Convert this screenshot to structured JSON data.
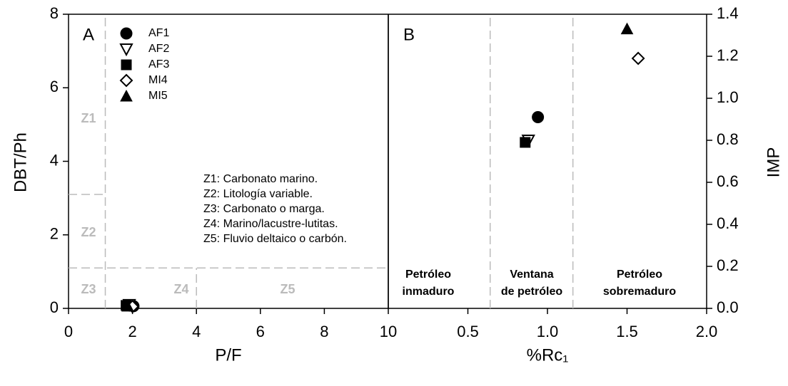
{
  "chart_data": [
    {
      "type": "scatter",
      "panel_label": "A",
      "xlabel": "P/F",
      "ylabel": "DBT/Ph",
      "xlim": [
        0,
        10
      ],
      "xticks": [
        0,
        2,
        4,
        6,
        8,
        10
      ],
      "ylim": [
        0,
        8
      ],
      "yticks": [
        0,
        2,
        4,
        6,
        8
      ],
      "series": [
        {
          "name": "AF1",
          "marker": "circle",
          "color": "#000000",
          "x": [
            2.03
          ],
          "values": [
            0.06
          ]
        },
        {
          "name": "AF2",
          "marker": "triangle-down-open",
          "color": "#000000",
          "x": [
            1.9
          ],
          "values": [
            0.1
          ]
        },
        {
          "name": "AF3",
          "marker": "square",
          "color": "#000000",
          "x": [
            1.8
          ],
          "values": [
            0.08
          ]
        },
        {
          "name": "MI4",
          "marker": "diamond-open",
          "color": "#000000",
          "x": [
            2.0
          ],
          "values": [
            0.05
          ]
        },
        {
          "name": "MI5",
          "marker": "triangle-up",
          "color": "#000000",
          "x": [
            1.85
          ],
          "values": [
            0.06
          ]
        }
      ],
      "zone_lines": [
        {
          "x": [
            1.15,
            1.15
          ],
          "y": [
            0,
            8
          ]
        },
        {
          "x": [
            0,
            10
          ],
          "y": [
            1.1,
            1.1
          ]
        },
        {
          "x": [
            0,
            1.15
          ],
          "y": [
            3.1,
            3.1
          ]
        },
        {
          "x": [
            4,
            4
          ],
          "y": [
            0,
            1.1
          ]
        }
      ],
      "zones": [
        "Z1",
        "Z2",
        "Z3",
        "Z4",
        "Z5"
      ],
      "notes": [
        "Z1: Carbonato marino.",
        "Z2: Litología variable.",
        "Z3: Carbonato o marga.",
        "Z4: Marino/lacustre-lutitas.",
        "Z5: Fluvio deltaico o carbón."
      ]
    },
    {
      "type": "scatter",
      "panel_label": "B",
      "xlabel": "%Rc₁",
      "y2label": "IMP",
      "xlim": [
        0,
        2
      ],
      "xticks": [
        0.5,
        {
          "value": 1,
          "label": "1.0"
        },
        1.5,
        {
          "value": 2,
          "label": "2.0"
        }
      ],
      "y2lim": [
        0,
        1.4
      ],
      "y2ticks": [
        {
          "value": 0,
          "label": "0.0"
        },
        0.2,
        0.4,
        0.6,
        0.8,
        {
          "value": 1,
          "label": "1.0"
        },
        1.2,
        1.4
      ],
      "series": [
        {
          "marker": "circle",
          "color": "#000000",
          "axis": "y2",
          "x": [
            0.94
          ],
          "values": [
            0.91
          ]
        },
        {
          "marker": "triangle-down-open",
          "color": "#000000",
          "axis": "y2",
          "x": [
            0.88
          ],
          "values": [
            0.8
          ]
        },
        {
          "marker": "square",
          "color": "#000000",
          "axis": "y2",
          "x": [
            0.86
          ],
          "values": [
            0.79
          ]
        },
        {
          "marker": "diamond-open",
          "color": "#000000",
          "axis": "y2",
          "x": [
            1.57
          ],
          "values": [
            1.19
          ]
        },
        {
          "marker": "triangle-up",
          "color": "#000000",
          "axis": "y2",
          "x": [
            1.5
          ],
          "values": [
            1.33
          ]
        }
      ],
      "zone_lines": [
        {
          "x": [
            0.64,
            0.64
          ],
          "y": [
            0,
            1.4
          ]
        },
        {
          "x": [
            1.16,
            1.16
          ],
          "y": [
            0,
            1.4
          ]
        }
      ],
      "regions": [
        [
          "Petróleo",
          "inmaduro"
        ],
        [
          "Ventana",
          "de petróleo"
        ],
        [
          "Petróleo",
          "sobremaduro"
        ]
      ]
    }
  ]
}
